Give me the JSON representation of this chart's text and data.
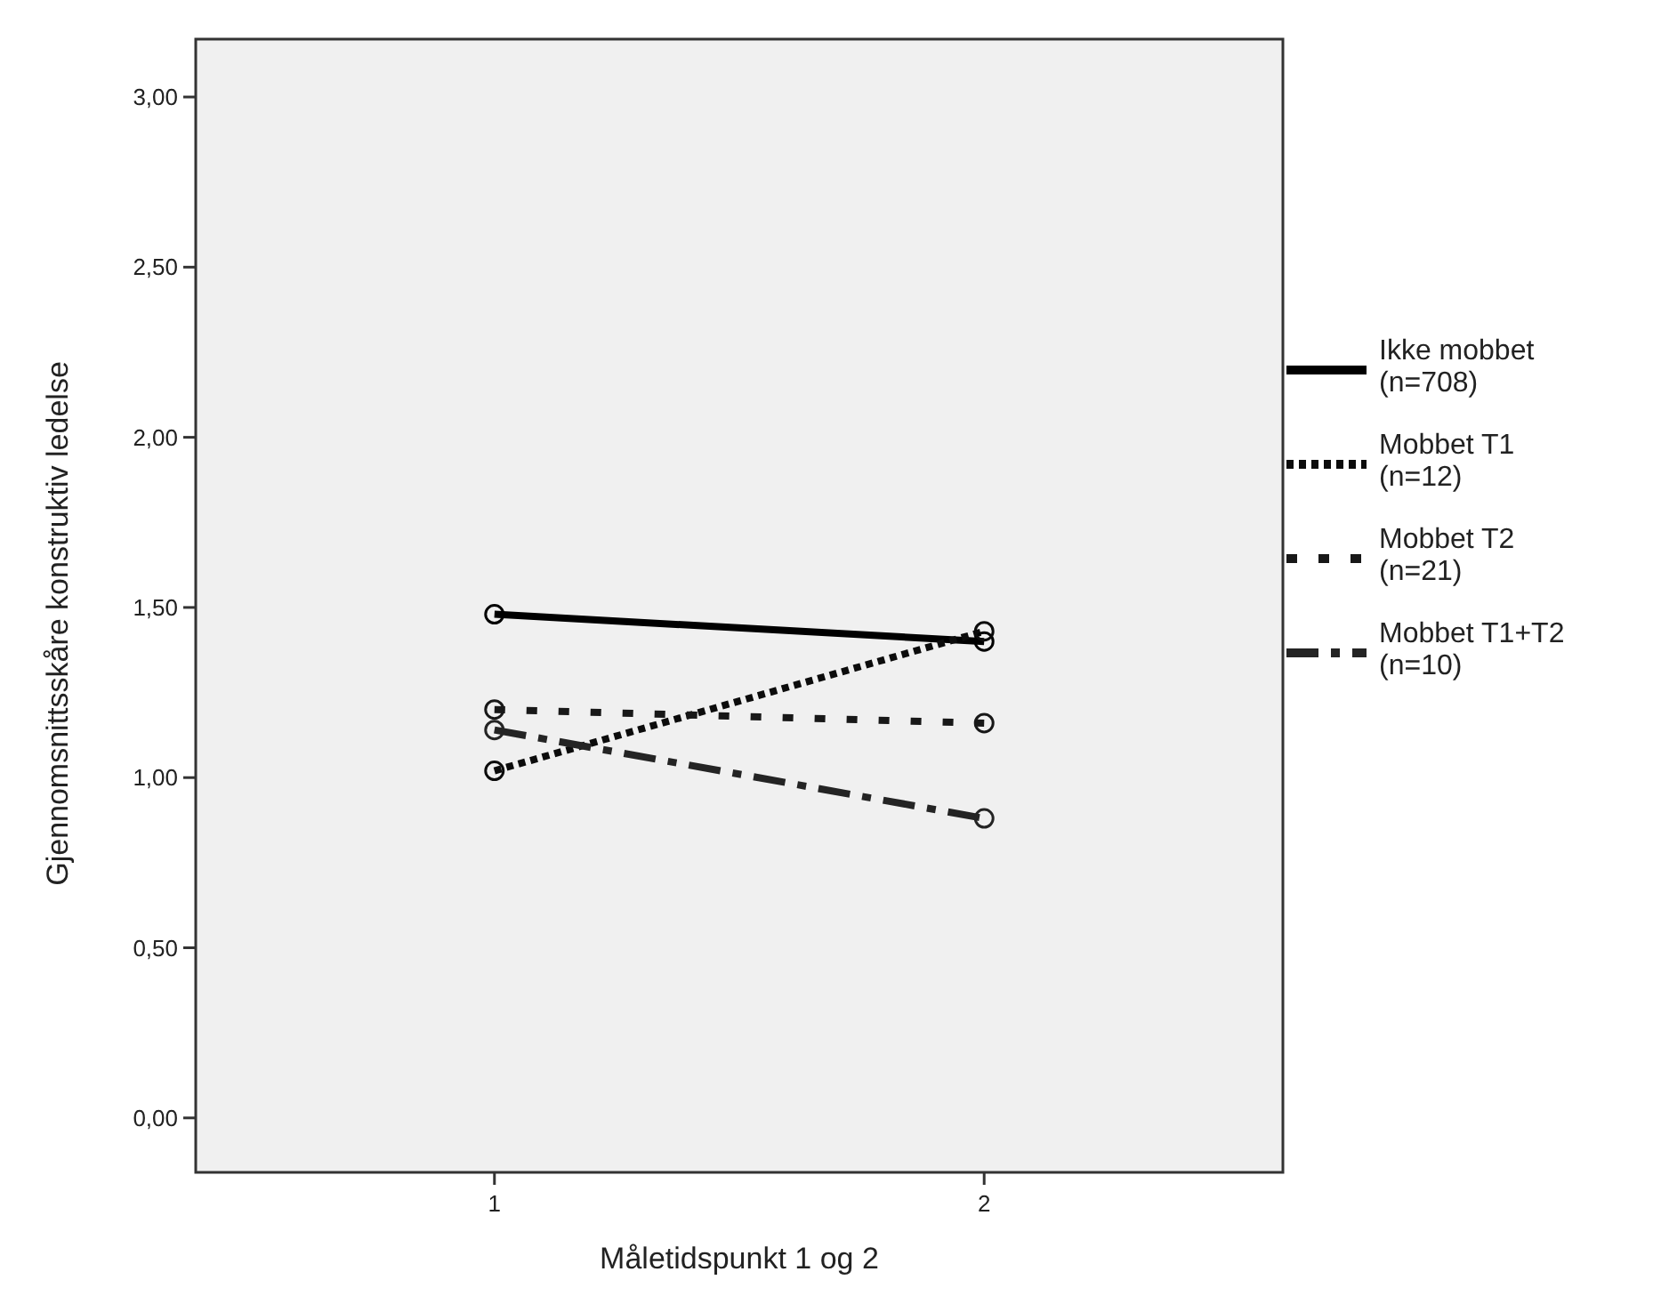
{
  "chart_data": {
    "type": "line",
    "xlabel": "Måletidspunkt 1 og 2",
    "ylabel": "Gjennomsnittsskåre konstruktiv ledelse",
    "x": [
      1,
      2
    ],
    "xlim": [
      0.39,
      2.61
    ],
    "xticks": [
      1,
      2
    ],
    "ylim": [
      -0.16,
      3.17
    ],
    "yticks": [
      {
        "value": 0,
        "label": "0,00"
      },
      {
        "value": 0.5,
        "label": "0,50"
      },
      {
        "value": 1,
        "label": "1,00"
      },
      {
        "value": 1.5,
        "label": "1,50"
      },
      {
        "value": 2,
        "label": "2,00"
      },
      {
        "value": 2.5,
        "label": "2,50"
      },
      {
        "value": 3,
        "label": "3,00"
      }
    ],
    "legend": "right",
    "marker": "circle",
    "grid": false,
    "series": [
      {
        "name": "Ikke mobbet\n(n=708)",
        "color": "#000000",
        "line_style": "solid",
        "values": [
          1.48,
          1.4
        ]
      },
      {
        "name": "Mobbet T1\n(n=12)",
        "color": "#0c0c0c",
        "line_style": "dotted",
        "values": [
          1.02,
          1.43
        ]
      },
      {
        "name": "Mobbet T2\n(n=21)",
        "color": "#181818",
        "line_style": "dashed",
        "values": [
          1.2,
          1.16
        ]
      },
      {
        "name": "Mobbet T1+T2\n(n=10)",
        "color": "#242424",
        "line_style": "dashdot",
        "values": [
          1.14,
          0.88
        ]
      }
    ]
  }
}
